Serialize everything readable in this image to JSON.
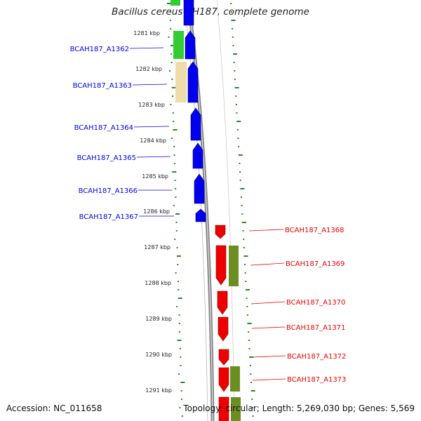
{
  "title": "Bacillus cereus AH187, complete genome",
  "footer": {
    "accession": "Accession: NC_011658",
    "summary": "Topology: circular; Length: 5,269,030 bp; Genes: 5,569"
  },
  "colors": {
    "forward_strand": "#0000ee",
    "reverse_strand": "#ee0000",
    "cog_green": "#33cc33",
    "cog_yellow": "#eeddaa",
    "cog_olive": "#6b8e23",
    "gc_dots": "#228b22",
    "backbone": "#888888"
  },
  "ruler": {
    "ticks": [
      "1281 kbp",
      "1282 kbp",
      "1283 kbp",
      "1284 kbp",
      "1285 kbp",
      "1286 kbp",
      "1287 kbp",
      "1288 kbp",
      "1289 kbp",
      "1290 kbp",
      "1291 kbp"
    ]
  },
  "forward_genes": [
    "BCAH187_A1362",
    "BCAH187_A1363",
    "BCAH187_A1364",
    "BCAH187_A1365",
    "BCAH187_A1366",
    "BCAH187_A1367"
  ],
  "reverse_genes": [
    "BCAH187_A1368",
    "BCAH187_A1369",
    "BCAH187_A1370",
    "BCAH187_A1371",
    "BCAH187_A1372",
    "BCAH187_A1373"
  ]
}
